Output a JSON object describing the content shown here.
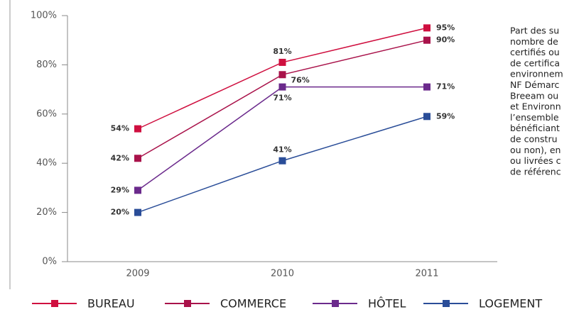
{
  "chart_data": {
    "type": "line",
    "categories": [
      "2009",
      "2010",
      "2011"
    ],
    "series": [
      {
        "name": "BUREAU",
        "color": "#cf0f3f",
        "values": [
          54,
          81,
          95
        ],
        "value_labels": [
          "54%",
          "81%",
          "95%"
        ]
      },
      {
        "name": "COMMERCE",
        "color": "#a9124a",
        "values": [
          42,
          76,
          90
        ],
        "value_labels": [
          "42%",
          "76%",
          "90%"
        ]
      },
      {
        "name": "HÔTEL",
        "color": "#6b2a8c",
        "values": [
          29,
          71,
          71
        ],
        "value_labels": [
          "29%",
          "71%",
          "71%"
        ]
      },
      {
        "name": "LOGEMENT",
        "color": "#2a4d98",
        "values": [
          20,
          41,
          59
        ],
        "value_labels": [
          "20%",
          "41%",
          "59%"
        ]
      }
    ],
    "ylim": [
      0,
      100
    ],
    "yticks": [
      {
        "value": 0,
        "label": "0%"
      },
      {
        "value": 20,
        "label": "20%"
      },
      {
        "value": 40,
        "label": "40%"
      },
      {
        "value": 60,
        "label": "60%"
      },
      {
        "value": 80,
        "label": "80%"
      },
      {
        "value": 100,
        "label": "100%"
      }
    ],
    "annotation": [
      "Part des su",
      "nombre de",
      "certifiés ou",
      "de certifica",
      "environnem",
      "NF Démarc",
      "Breeam ou",
      "et Environn",
      "l’ensemble",
      "bénéficiant",
      "de constru",
      "ou non), en",
      "ou livrées c",
      "de référenc"
    ]
  }
}
